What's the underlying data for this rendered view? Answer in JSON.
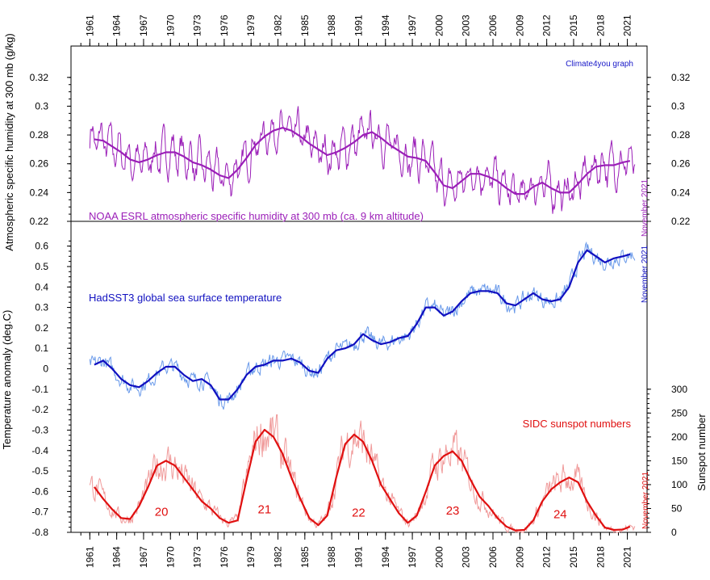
{
  "chart_data": {
    "type": "line",
    "credit": "Climate4you graph",
    "x_axis": {
      "range": [
        1958.9,
        2023.2
      ],
      "ticks": [
        1961,
        1964,
        1967,
        1970,
        1973,
        1976,
        1979,
        1982,
        1985,
        1988,
        1991,
        1994,
        1997,
        2000,
        2003,
        2006,
        2009,
        2012,
        2015,
        2018,
        2021
      ]
    },
    "humidity_axis": {
      "label": "Atmospheric specific humidity at 300 mb (g/kg)",
      "range": [
        0.22,
        0.33
      ],
      "ticks": [
        "0.22",
        "0.24",
        "0.26",
        "0.28",
        "0.3",
        "0.32"
      ]
    },
    "temperature_axis": {
      "label": "Temperature anomaly (deg.C)",
      "range": [
        -0.8,
        0.65
      ],
      "ticks": [
        "-0.8",
        "-0.7",
        "-0.6",
        "-0.5",
        "-0.4",
        "-0.3",
        "-0.2",
        "-0.1",
        "0",
        "0.1",
        "0.2",
        "0.3",
        "0.4",
        "0.5",
        "0.6"
      ]
    },
    "sunspot_axis": {
      "label": "Sunspot number",
      "range": [
        0,
        320
      ],
      "ticks": [
        "0",
        "50",
        "100",
        "150",
        "200",
        "250",
        "300"
      ]
    },
    "series": [
      {
        "name": "NOAA ESRL atmospheric specific humidity at 300 mb (ca. 9 km altitude)",
        "color": "#9b1fb8",
        "axis": "humidity",
        "end_note": "November 2021",
        "smoothed": [
          [
            1961.5,
            0.277
          ],
          [
            1962.5,
            0.276
          ],
          [
            1963.5,
            0.272
          ],
          [
            1964.5,
            0.268
          ],
          [
            1965.5,
            0.263
          ],
          [
            1966.5,
            0.261
          ],
          [
            1967.5,
            0.263
          ],
          [
            1968.5,
            0.266
          ],
          [
            1969.5,
            0.268
          ],
          [
            1970.5,
            0.268
          ],
          [
            1971.5,
            0.265
          ],
          [
            1972.5,
            0.261
          ],
          [
            1973.5,
            0.259
          ],
          [
            1974.5,
            0.256
          ],
          [
            1975.5,
            0.252
          ],
          [
            1976.5,
            0.25
          ],
          [
            1977.5,
            0.256
          ],
          [
            1978.5,
            0.264
          ],
          [
            1979.5,
            0.273
          ],
          [
            1980.5,
            0.279
          ],
          [
            1981.5,
            0.283
          ],
          [
            1982.5,
            0.285
          ],
          [
            1983.5,
            0.283
          ],
          [
            1984.5,
            0.279
          ],
          [
            1985.5,
            0.274
          ],
          [
            1986.5,
            0.27
          ],
          [
            1987.5,
            0.266
          ],
          [
            1988.5,
            0.268
          ],
          [
            1989.5,
            0.271
          ],
          [
            1990.5,
            0.275
          ],
          [
            1991.5,
            0.28
          ],
          [
            1992.5,
            0.282
          ],
          [
            1993.5,
            0.278
          ],
          [
            1994.5,
            0.273
          ],
          [
            1995.5,
            0.269
          ],
          [
            1996.5,
            0.265
          ],
          [
            1997.5,
            0.264
          ],
          [
            1998.5,
            0.262
          ],
          [
            1999.5,
            0.254
          ],
          [
            2000.5,
            0.245
          ],
          [
            2001.5,
            0.243
          ],
          [
            2002.5,
            0.248
          ],
          [
            2003.5,
            0.253
          ],
          [
            2004.5,
            0.253
          ],
          [
            2005.5,
            0.251
          ],
          [
            2006.5,
            0.248
          ],
          [
            2007.5,
            0.243
          ],
          [
            2008.5,
            0.239
          ],
          [
            2009.5,
            0.239
          ],
          [
            2010.5,
            0.244
          ],
          [
            2011.5,
            0.247
          ],
          [
            2012.5,
            0.243
          ],
          [
            2013.5,
            0.24
          ],
          [
            2014.5,
            0.24
          ],
          [
            2015.5,
            0.246
          ],
          [
            2016.5,
            0.253
          ],
          [
            2017.5,
            0.258
          ],
          [
            2018.5,
            0.259
          ],
          [
            2019.5,
            0.259
          ],
          [
            2020.5,
            0.261
          ],
          [
            2021.3,
            0.262
          ]
        ]
      },
      {
        "name": "HadSST3 global sea surface temperature",
        "color": "#1010c0",
        "raw_color": "#6a9aea",
        "axis": "temperature",
        "end_note": "November 2021",
        "smoothed": [
          [
            1961.5,
            0.02
          ],
          [
            1962.5,
            0.04
          ],
          [
            1963.5,
            0.0
          ],
          [
            1964.5,
            -0.05
          ],
          [
            1965.5,
            -0.08
          ],
          [
            1966.5,
            -0.09
          ],
          [
            1967.5,
            -0.06
          ],
          [
            1968.5,
            -0.02
          ],
          [
            1969.5,
            0.01
          ],
          [
            1970.5,
            0.01
          ],
          [
            1971.5,
            -0.03
          ],
          [
            1972.5,
            -0.06
          ],
          [
            1973.5,
            -0.05
          ],
          [
            1974.5,
            -0.08
          ],
          [
            1975.5,
            -0.15
          ],
          [
            1976.5,
            -0.15
          ],
          [
            1977.5,
            -0.1
          ],
          [
            1978.5,
            -0.03
          ],
          [
            1979.5,
            0.01
          ],
          [
            1980.5,
            0.02
          ],
          [
            1981.5,
            0.04
          ],
          [
            1982.5,
            0.04
          ],
          [
            1983.5,
            0.05
          ],
          [
            1984.5,
            0.03
          ],
          [
            1985.5,
            -0.01
          ],
          [
            1986.5,
            -0.02
          ],
          [
            1987.5,
            0.05
          ],
          [
            1988.5,
            0.09
          ],
          [
            1989.5,
            0.1
          ],
          [
            1990.5,
            0.12
          ],
          [
            1991.5,
            0.17
          ],
          [
            1992.5,
            0.14
          ],
          [
            1993.5,
            0.12
          ],
          [
            1994.5,
            0.13
          ],
          [
            1995.5,
            0.15
          ],
          [
            1996.5,
            0.16
          ],
          [
            1997.5,
            0.22
          ],
          [
            1998.5,
            0.3
          ],
          [
            1999.5,
            0.3
          ],
          [
            2000.5,
            0.26
          ],
          [
            2001.5,
            0.28
          ],
          [
            2002.5,
            0.33
          ],
          [
            2003.5,
            0.37
          ],
          [
            2004.5,
            0.38
          ],
          [
            2005.5,
            0.38
          ],
          [
            2006.5,
            0.37
          ],
          [
            2007.5,
            0.32
          ],
          [
            2008.5,
            0.31
          ],
          [
            2009.5,
            0.34
          ],
          [
            2010.5,
            0.37
          ],
          [
            2011.5,
            0.34
          ],
          [
            2012.5,
            0.33
          ],
          [
            2013.5,
            0.34
          ],
          [
            2014.5,
            0.4
          ],
          [
            2015.5,
            0.52
          ],
          [
            2016.5,
            0.58
          ],
          [
            2017.5,
            0.55
          ],
          [
            2018.5,
            0.52
          ],
          [
            2019.5,
            0.54
          ],
          [
            2020.5,
            0.55
          ],
          [
            2021.3,
            0.56
          ]
        ]
      },
      {
        "name": "SIDC sunspot numbers",
        "color": "#e01010",
        "raw_color": "#f09a9a",
        "axis": "sunspot",
        "end_note": "November 2021",
        "smoothed": [
          [
            1961.5,
            95
          ],
          [
            1962.5,
            70
          ],
          [
            1963.5,
            48
          ],
          [
            1964.5,
            30
          ],
          [
            1965.5,
            28
          ],
          [
            1966.5,
            55
          ],
          [
            1967.5,
            95
          ],
          [
            1968.5,
            140
          ],
          [
            1969.5,
            150
          ],
          [
            1970.5,
            140
          ],
          [
            1971.5,
            115
          ],
          [
            1972.5,
            90
          ],
          [
            1973.5,
            65
          ],
          [
            1974.5,
            50
          ],
          [
            1975.5,
            30
          ],
          [
            1976.5,
            20
          ],
          [
            1977.5,
            25
          ],
          [
            1978.5,
            110
          ],
          [
            1979.5,
            190
          ],
          [
            1980.5,
            215
          ],
          [
            1981.5,
            200
          ],
          [
            1982.5,
            165
          ],
          [
            1983.5,
            115
          ],
          [
            1984.5,
            70
          ],
          [
            1985.5,
            30
          ],
          [
            1986.5,
            15
          ],
          [
            1987.5,
            35
          ],
          [
            1988.5,
            115
          ],
          [
            1989.5,
            185
          ],
          [
            1990.5,
            205
          ],
          [
            1991.5,
            190
          ],
          [
            1992.5,
            150
          ],
          [
            1993.5,
            100
          ],
          [
            1994.5,
            70
          ],
          [
            1995.5,
            40
          ],
          [
            1996.5,
            20
          ],
          [
            1997.5,
            35
          ],
          [
            1998.5,
            85
          ],
          [
            1999.5,
            140
          ],
          [
            2000.5,
            160
          ],
          [
            2001.5,
            170
          ],
          [
            2002.5,
            150
          ],
          [
            2003.5,
            110
          ],
          [
            2004.5,
            75
          ],
          [
            2005.5,
            55
          ],
          [
            2006.5,
            30
          ],
          [
            2007.5,
            12
          ],
          [
            2008.5,
            4
          ],
          [
            2009.5,
            5
          ],
          [
            2010.5,
            25
          ],
          [
            2011.5,
            65
          ],
          [
            2012.5,
            90
          ],
          [
            2013.5,
            105
          ],
          [
            2014.5,
            115
          ],
          [
            2015.5,
            105
          ],
          [
            2016.5,
            65
          ],
          [
            2017.5,
            35
          ],
          [
            2018.5,
            10
          ],
          [
            2019.5,
            5
          ],
          [
            2020.5,
            6
          ],
          [
            2021.3,
            12
          ]
        ]
      }
    ],
    "cycle_labels": [
      {
        "text": "20",
        "x": 1969,
        "y": 35
      },
      {
        "text": "21",
        "x": 1980.5,
        "y": 40
      },
      {
        "text": "22",
        "x": 1991,
        "y": 33
      },
      {
        "text": "23",
        "x": 2001.5,
        "y": 37
      },
      {
        "text": "24",
        "x": 2013.5,
        "y": 30
      }
    ]
  }
}
